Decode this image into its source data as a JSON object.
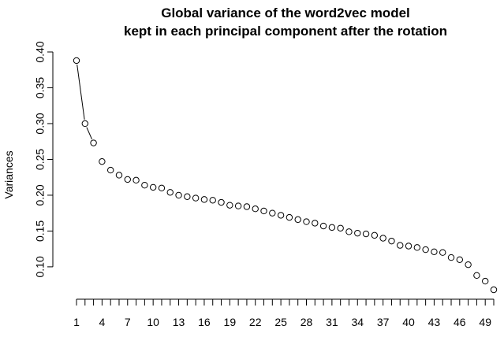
{
  "chart_data": {
    "type": "line",
    "title_lines": [
      "Global variance of the word2vec model",
      "kept in each principal component after the rotation"
    ],
    "xlabel": "",
    "ylabel": "Variances",
    "x": [
      1,
      2,
      3,
      4,
      5,
      6,
      7,
      8,
      9,
      10,
      11,
      12,
      13,
      14,
      15,
      16,
      17,
      18,
      19,
      20,
      21,
      22,
      23,
      24,
      25,
      26,
      27,
      28,
      29,
      30,
      31,
      32,
      33,
      34,
      35,
      36,
      37,
      38,
      39,
      40,
      41,
      42,
      43,
      44,
      45,
      46,
      47,
      48,
      49,
      50
    ],
    "values": [
      0.388,
      0.3,
      0.273,
      0.247,
      0.235,
      0.228,
      0.222,
      0.221,
      0.214,
      0.211,
      0.21,
      0.204,
      0.2,
      0.198,
      0.196,
      0.194,
      0.193,
      0.19,
      0.186,
      0.185,
      0.184,
      0.181,
      0.178,
      0.175,
      0.172,
      0.169,
      0.166,
      0.163,
      0.161,
      0.157,
      0.155,
      0.154,
      0.149,
      0.147,
      0.146,
      0.144,
      0.14,
      0.136,
      0.13,
      0.129,
      0.127,
      0.124,
      0.121,
      0.12,
      0.113,
      0.11,
      0.103,
      0.088,
      0.08,
      0.068
    ],
    "line_segment_points": 3,
    "xlim": [
      1,
      50
    ],
    "ylim": [
      0.068,
      0.4
    ],
    "x_tick_labels": [
      "1",
      "4",
      "7",
      "10",
      "13",
      "16",
      "19",
      "22",
      "25",
      "28",
      "31",
      "34",
      "37",
      "40",
      "43",
      "46",
      "49"
    ],
    "y_tick_labels": [
      "0.10",
      "0.15",
      "0.20",
      "0.25",
      "0.30",
      "0.35",
      "0.40"
    ],
    "point_style": "open-circle",
    "grid": false,
    "legend": "none"
  }
}
